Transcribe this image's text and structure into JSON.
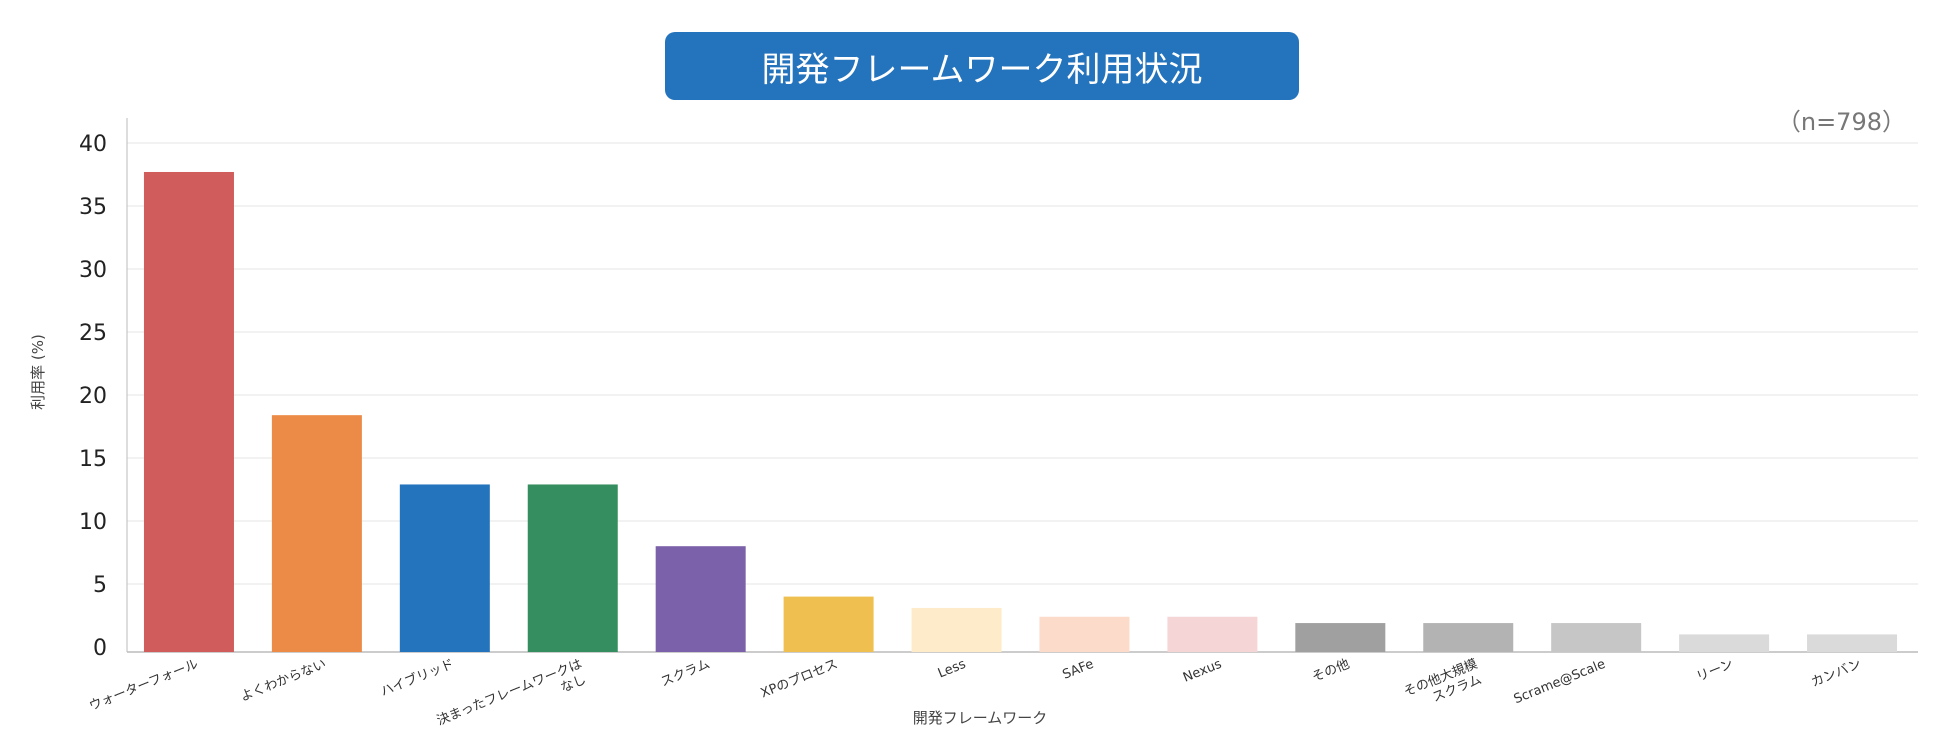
{
  "chart_data": {
    "type": "bar",
    "title": "開発フレームワーク利用状況",
    "note": "（n=798）",
    "xlabel": "開発フレームワーク",
    "ylabel": "利用率 (%)",
    "ylim": [
      0,
      42
    ],
    "yticks": [
      0,
      5,
      10,
      15,
      20,
      25,
      30,
      35,
      40
    ],
    "grid": true,
    "categories": [
      [
        "ウォーターフォール"
      ],
      [
        "よくわからない"
      ],
      [
        "ハイブリッド"
      ],
      [
        "決まったフレームワークは",
        "なし"
      ],
      [
        "スクラム"
      ],
      [
        "XPのプロセス"
      ],
      [
        "Less"
      ],
      [
        "SAFe"
      ],
      [
        "Nexus"
      ],
      [
        "その他"
      ],
      [
        "その他大規模",
        "スクラム"
      ],
      [
        "Scrame@Scale"
      ],
      [
        "リーン"
      ],
      [
        "カンバン"
      ]
    ],
    "values": [
      37.7,
      18.4,
      12.9,
      12.9,
      8.0,
      4.0,
      3.1,
      2.4,
      2.4,
      1.9,
      1.9,
      1.9,
      1.0,
      1.0
    ],
    "colors": [
      "#d05c5c",
      "#ec8b47",
      "#2473bd",
      "#358e5f",
      "#7b61a9",
      "#efc04f",
      "#fdebc9",
      "#fcdbcb",
      "#f5d5d5",
      "#a0a0a0",
      "#b3b3b3",
      "#c6c6c6",
      "#dadada",
      "#dadada"
    ]
  }
}
